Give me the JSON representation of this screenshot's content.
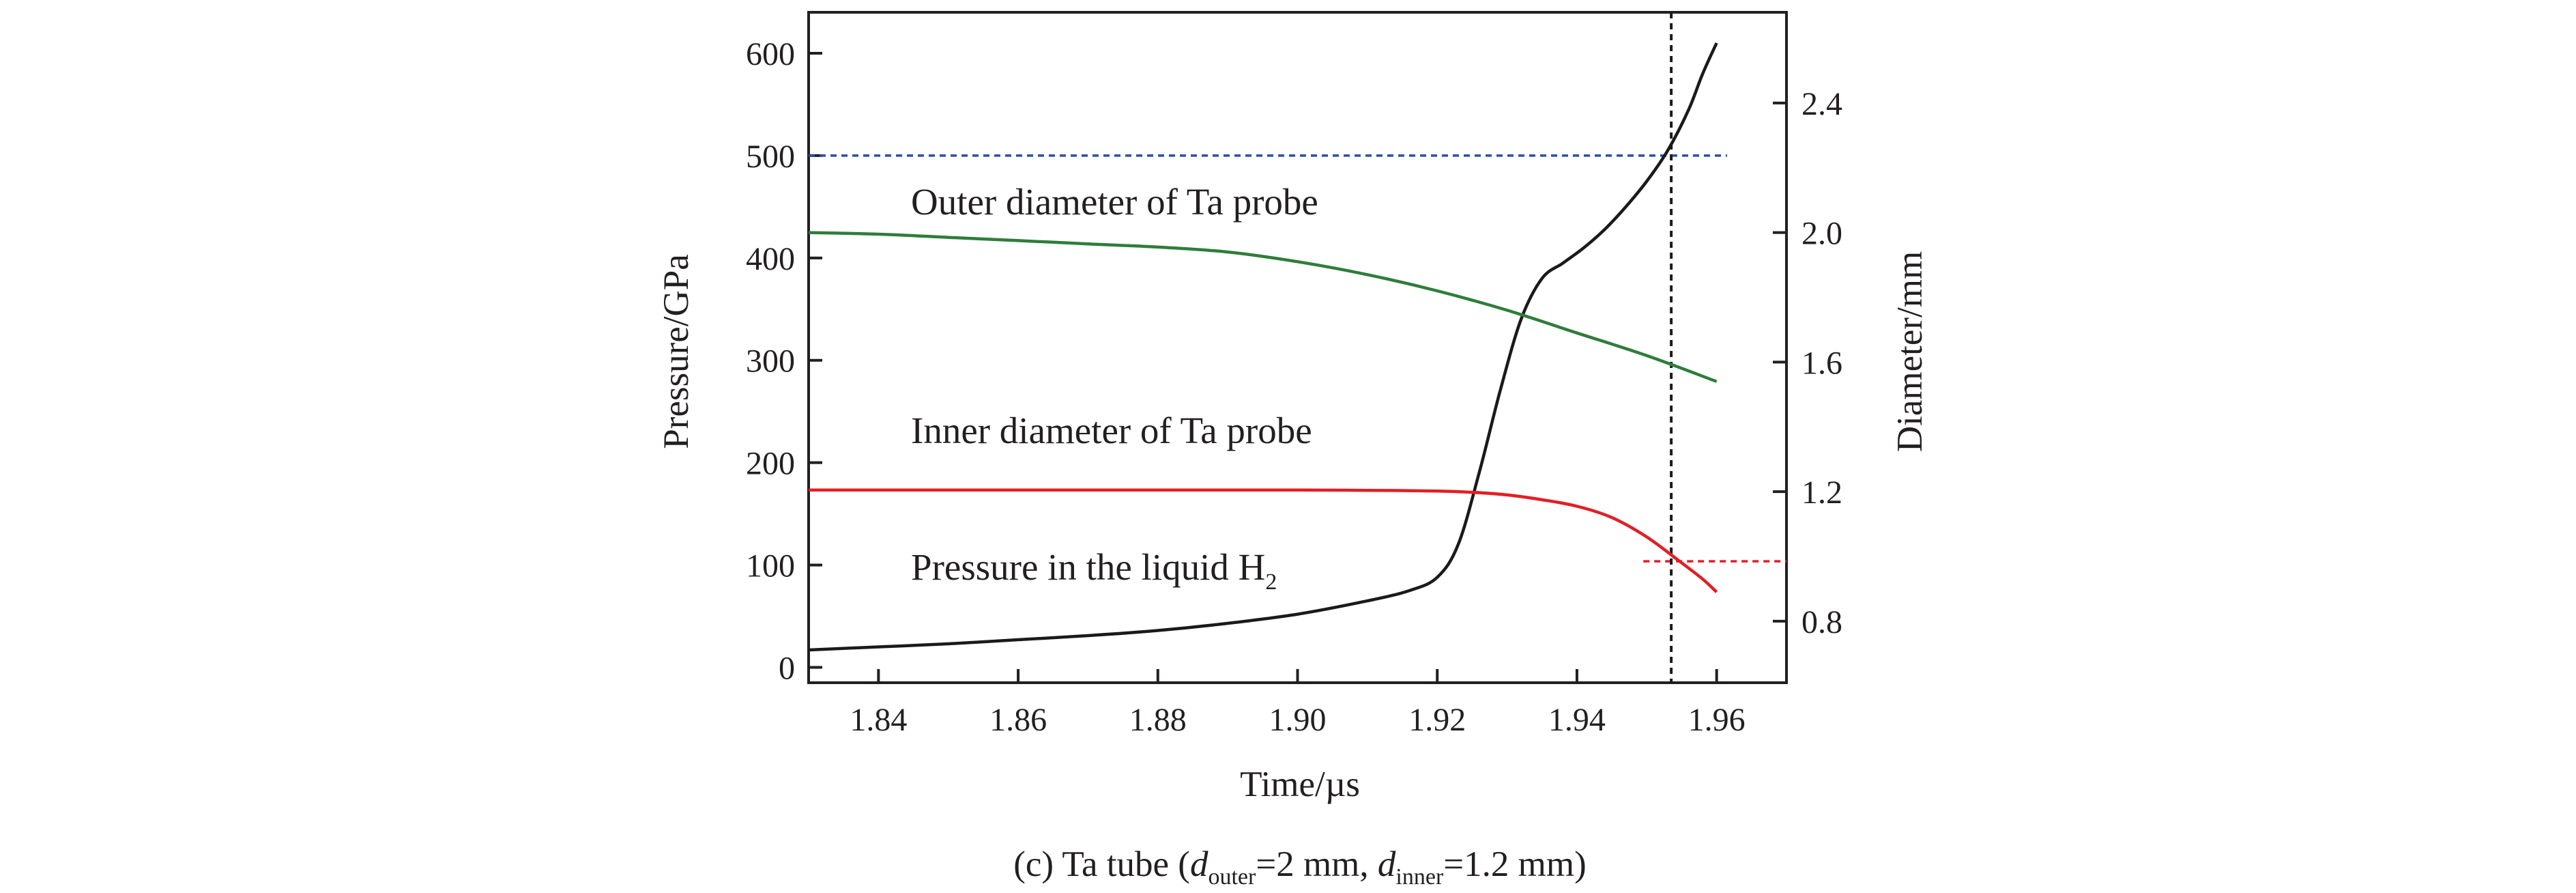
{
  "chart_data": {
    "type": "line",
    "xlabel": "Time/µs",
    "ylabel_left": "Pressure/GPa",
    "ylabel_right": "Diameter/mm",
    "xlim": [
      1.83,
      1.97
    ],
    "ylim_left": [
      -15,
      640
    ],
    "ylim_right": [
      0.61,
      2.68
    ],
    "x_ticks": [
      "1.84",
      "1.86",
      "1.88",
      "1.90",
      "1.92",
      "1.94",
      "1.96"
    ],
    "y_left_ticks": [
      "0",
      "100",
      "200",
      "300",
      "400",
      "500",
      "600"
    ],
    "y_right_ticks": [
      "0.8",
      "1.2",
      "1.6",
      "2.0",
      "2.4"
    ],
    "grid": false,
    "annotations": {
      "outer": "Outer diameter of Ta probe",
      "inner": "Inner diameter of Ta probe",
      "pressure_main": "Pressure in the liquid H",
      "pressure_sub": "2"
    },
    "caption": {
      "prefix": "(c) Ta tube (",
      "d1": "d",
      "d1_sub": "outer",
      "mid": "=2 mm, ",
      "d2": "d",
      "d2_sub": "inner",
      "suffix": "=1.2 mm)"
    },
    "colors": {
      "pressure": "#1a1a1a",
      "outer": "#2e7d3a",
      "inner": "#e31e24",
      "blue_ref": "#2b4ea2",
      "red_ref": "#e31e24",
      "vertical_ref": "#1a1a1a"
    },
    "reference_lines": {
      "pressure_500_gpa": 500,
      "diameter_1_0_mm": 0.985,
      "time_mark_us": 1.9535
    },
    "series": [
      {
        "axis": "left",
        "color_key": "pressure",
        "x": [
          1.83,
          1.84,
          1.85,
          1.86,
          1.87,
          1.88,
          1.89,
          1.9,
          1.91,
          1.916,
          1.92,
          1.923,
          1.926,
          1.929,
          1.932,
          1.935,
          1.938,
          1.941,
          1.944,
          1.947,
          1.95,
          1.953,
          1.956,
          1.958,
          1.96
        ],
        "y": [
          17,
          20,
          23,
          27,
          31,
          36,
          43,
          52,
          65,
          75,
          88,
          120,
          190,
          270,
          340,
          380,
          395,
          410,
          428,
          450,
          475,
          505,
          545,
          580,
          610
        ]
      },
      {
        "axis": "right",
        "color_key": "outer",
        "x": [
          1.83,
          1.84,
          1.85,
          1.86,
          1.87,
          1.88,
          1.89,
          1.9,
          1.91,
          1.92,
          1.93,
          1.94,
          1.95,
          1.96
        ],
        "y": [
          2.0,
          1.995,
          1.985,
          1.975,
          1.965,
          1.955,
          1.94,
          1.91,
          1.87,
          1.82,
          1.76,
          1.69,
          1.62,
          1.54
        ]
      },
      {
        "axis": "right",
        "color_key": "inner",
        "x": [
          1.83,
          1.84,
          1.86,
          1.88,
          1.9,
          1.91,
          1.92,
          1.925,
          1.93,
          1.935,
          1.94,
          1.945,
          1.95,
          1.955,
          1.958,
          1.96
        ],
        "y": [
          1.205,
          1.205,
          1.205,
          1.205,
          1.205,
          1.204,
          1.202,
          1.198,
          1.19,
          1.175,
          1.155,
          1.12,
          1.06,
          0.98,
          0.93,
          0.89
        ]
      }
    ]
  }
}
